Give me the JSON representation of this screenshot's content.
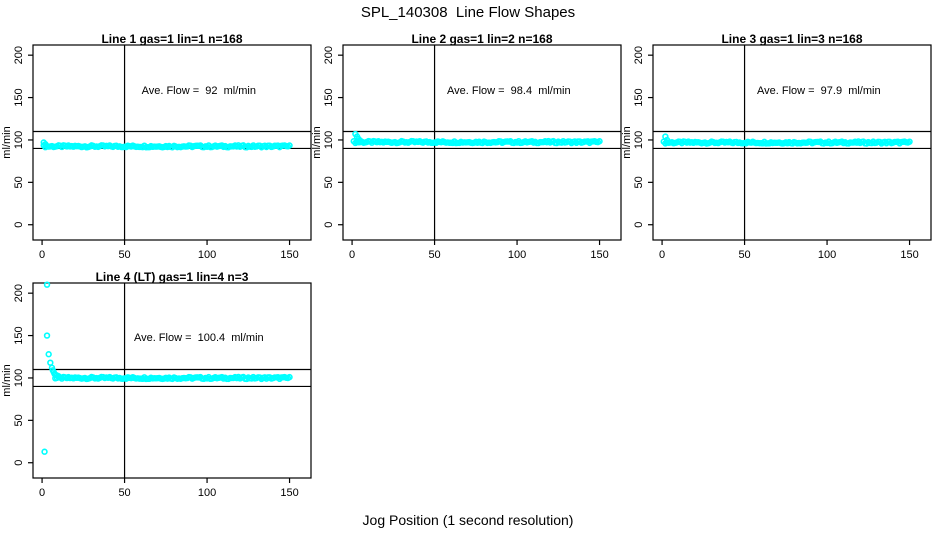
{
  "page": {
    "title": "SPL_140308  Line Flow Shapes",
    "xlabel": "Jog Position (1 second resolution)",
    "background_color": "#ffffff",
    "point_color": "#00ffff",
    "line_color": "#000000"
  },
  "chart_data": [
    {
      "type": "scatter",
      "title": "Line 1 gas=1 lin=1 n=168",
      "annotation": "Ave. Flow =  92  ml/min",
      "ave_flow_ml_min": 92,
      "n": 168,
      "ylabel": "ml/min",
      "x_ticks": [
        0,
        50,
        100,
        150
      ],
      "y_ticks": [
        0,
        50,
        100,
        150,
        200
      ],
      "xlim": [
        -5.5,
        163
      ],
      "ylim": [
        -18,
        212
      ],
      "ref_hlines": [
        110,
        90
      ],
      "ref_vline": 50,
      "annotation_pos": {
        "x": 95,
        "y": 158
      },
      "flat_segment": {
        "x_start": 1,
        "x_end": 150,
        "y": 92.5,
        "step": 1
      },
      "transient_points": [
        [
          1,
          97
        ],
        [
          2,
          95
        ]
      ]
    },
    {
      "type": "scatter",
      "title": "Line 2 gas=1 lin=2 n=168",
      "annotation": "Ave. Flow =  98.4  ml/min",
      "ave_flow_ml_min": 98.4,
      "n": 168,
      "ylabel": "ml/min",
      "x_ticks": [
        0,
        50,
        100,
        150
      ],
      "y_ticks": [
        0,
        50,
        100,
        150,
        200
      ],
      "xlim": [
        -5.5,
        163
      ],
      "ylim": [
        -18,
        212
      ],
      "ref_hlines": [
        110,
        90
      ],
      "ref_vline": 50,
      "annotation_pos": {
        "x": 95,
        "y": 158
      },
      "flat_segment": {
        "x_start": 1,
        "x_end": 150,
        "y": 97.5,
        "step": 1
      },
      "transient_points": [
        [
          2,
          107
        ],
        [
          3,
          104
        ],
        [
          4,
          101
        ],
        [
          5,
          99
        ]
      ]
    },
    {
      "type": "scatter",
      "title": "Line 3 gas=1 lin=3 n=168",
      "annotation": "Ave. Flow =  97.9  ml/min",
      "ave_flow_ml_min": 97.9,
      "n": 168,
      "ylabel": "ml/min",
      "x_ticks": [
        0,
        50,
        100,
        150
      ],
      "y_ticks": [
        0,
        50,
        100,
        150,
        200
      ],
      "xlim": [
        -5.5,
        163
      ],
      "ylim": [
        -18,
        212
      ],
      "ref_hlines": [
        110,
        90
      ],
      "ref_vline": 50,
      "annotation_pos": {
        "x": 95,
        "y": 158
      },
      "flat_segment": {
        "x_start": 1,
        "x_end": 150,
        "y": 97,
        "step": 1
      },
      "transient_points": [
        [
          2,
          104
        ],
        [
          3,
          100
        ]
      ]
    },
    {
      "type": "scatter",
      "title": "Line 4 (LT) gas=1 lin=4 n=3",
      "annotation": "Ave. Flow =  100.4  ml/min",
      "ave_flow_ml_min": 100.4,
      "n": 3,
      "ylabel": "ml/min",
      "x_ticks": [
        0,
        50,
        100,
        150
      ],
      "y_ticks": [
        0,
        50,
        100,
        150,
        200
      ],
      "xlim": [
        -5.5,
        163
      ],
      "ylim": [
        -18,
        212
      ],
      "ref_hlines": [
        110,
        90
      ],
      "ref_vline": 50,
      "annotation_pos": {
        "x": 95,
        "y": 147
      },
      "flat_segment": {
        "x_start": 8,
        "x_end": 150,
        "y": 100,
        "step": 1
      },
      "transient_points": [
        [
          3,
          210
        ],
        [
          3,
          150
        ],
        [
          4,
          128
        ],
        [
          5,
          118
        ],
        [
          6,
          112
        ],
        [
          6.5,
          109
        ],
        [
          7,
          107
        ],
        [
          7.5,
          105
        ],
        [
          8,
          104
        ],
        [
          9,
          103
        ],
        [
          10,
          102
        ],
        [
          1.5,
          13
        ]
      ]
    }
  ]
}
